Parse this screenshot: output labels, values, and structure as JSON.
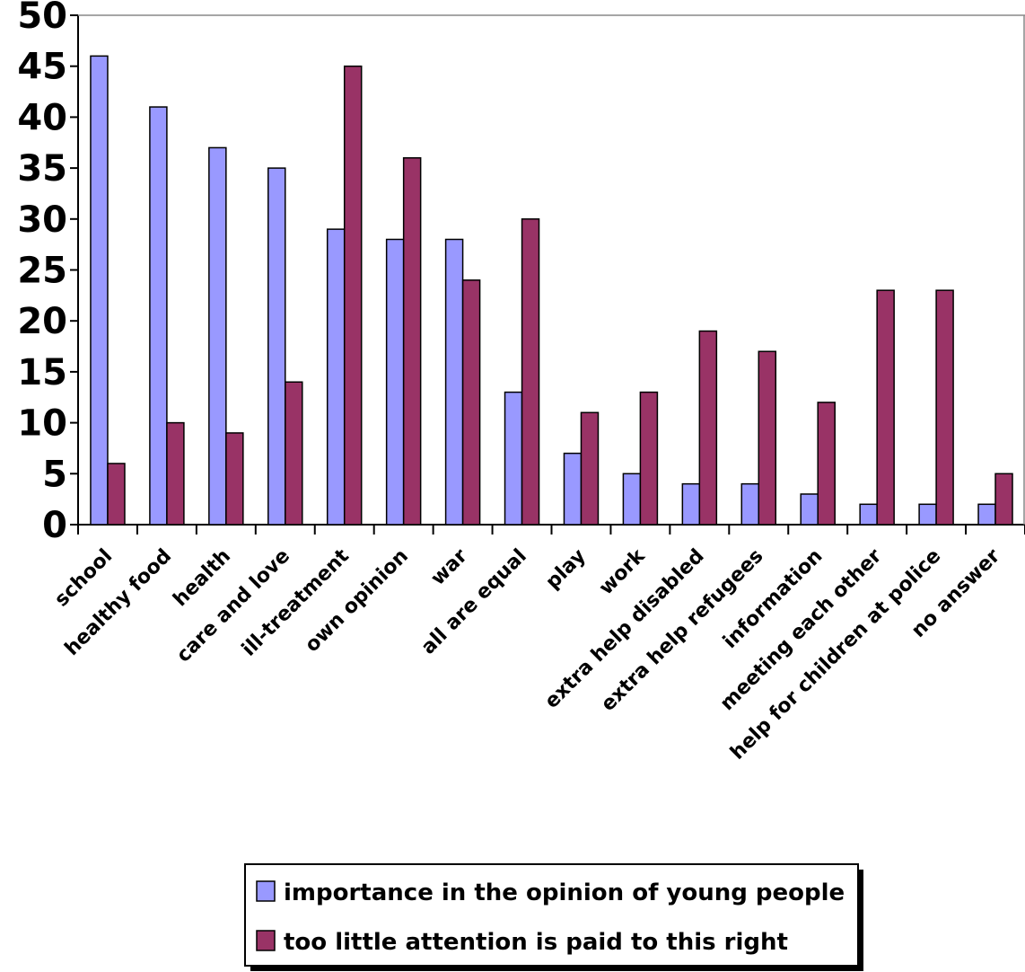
{
  "chart_data": {
    "type": "bar",
    "categories": [
      "school",
      "healthy food",
      "health",
      "care and love",
      "ill-treatment",
      "own opinion",
      "war",
      "all are equal",
      "play",
      "work",
      "extra help disabled",
      "extra help refugees",
      "information",
      "meeting each other",
      "help for children at police",
      "no answer"
    ],
    "series": [
      {
        "name": "importance in the opinion of young people",
        "color": "#9999ff",
        "values": [
          46,
          41,
          37,
          35,
          29,
          28,
          28,
          13,
          7,
          5,
          4,
          4,
          3,
          2,
          2,
          2
        ]
      },
      {
        "name": "too little attention is paid to this right",
        "color": "#993366",
        "values": [
          6,
          10,
          9,
          14,
          45,
          36,
          24,
          30,
          11,
          13,
          19,
          17,
          12,
          23,
          23,
          5
        ]
      }
    ],
    "ylim": [
      0,
      50
    ],
    "yticks": [
      "0",
      "5",
      "10",
      "15",
      "20",
      "25",
      "30",
      "35",
      "40",
      "45",
      "50"
    ],
    "grid": false,
    "legend": "bottom"
  }
}
